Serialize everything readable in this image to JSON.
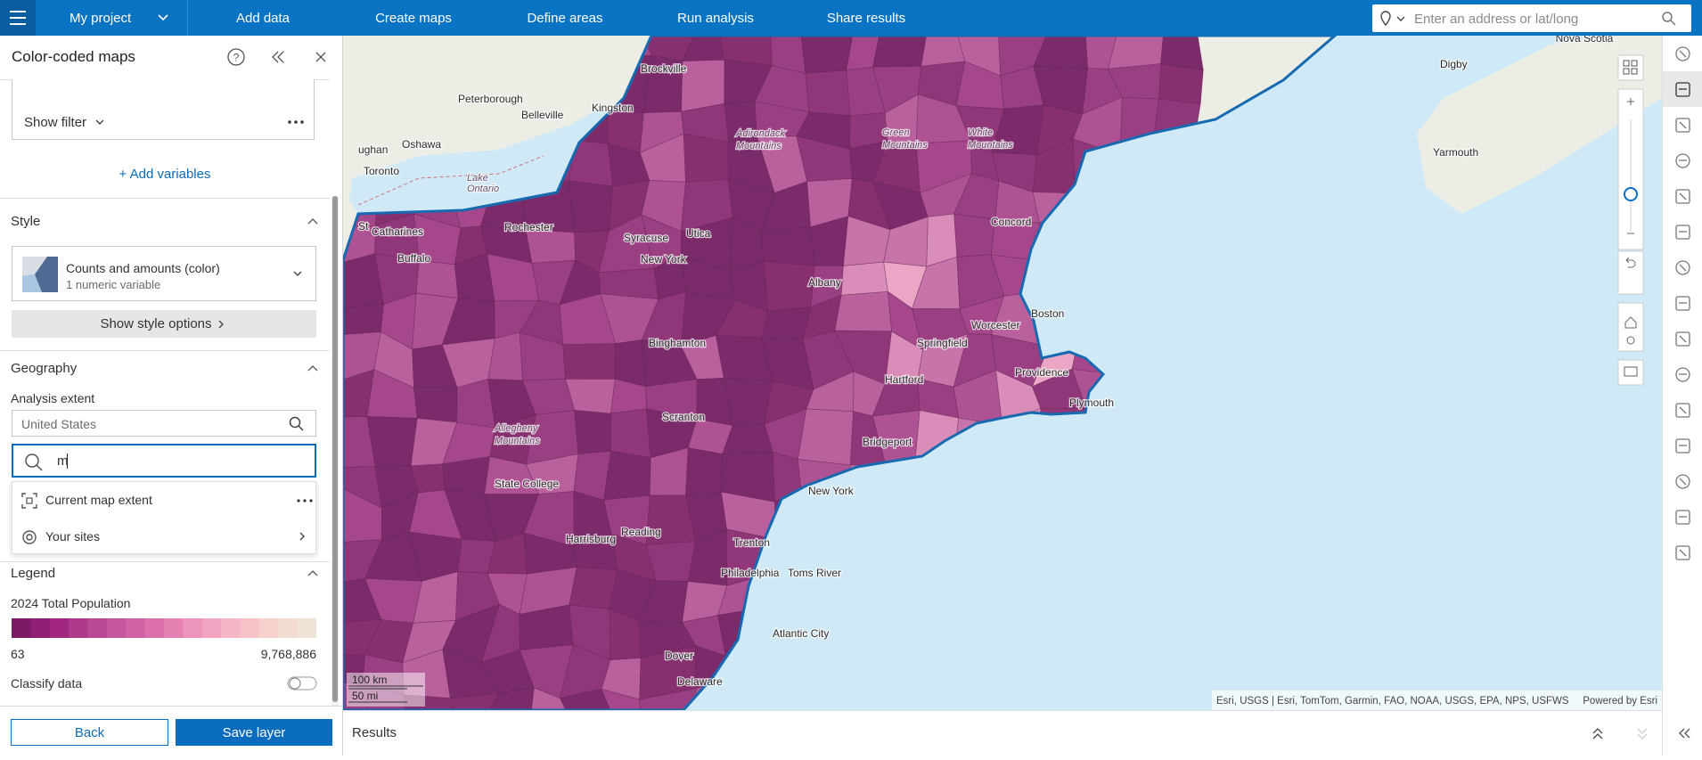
{
  "header": {
    "project": "My project",
    "nav": [
      "Add data",
      "Create maps",
      "Define areas",
      "Run analysis",
      "Share results"
    ],
    "search_placeholder": "Enter an address or lat/long"
  },
  "panel": {
    "title": "Color-coded maps",
    "show_filter": "Show filter",
    "add_variables": "+ Add variables",
    "style": {
      "heading": "Style",
      "option_title": "Counts and amounts (color)",
      "option_sub": "1 numeric variable",
      "button": "Show style options"
    },
    "geography": {
      "heading": "Geography",
      "label": "Analysis extent",
      "value": "United States",
      "search_text": "m",
      "items": [
        "Current map extent",
        "Your sites"
      ]
    },
    "legend": {
      "heading": "Legend",
      "field": "2024 Total Population",
      "min": "63",
      "max": "9,768,886",
      "classify": "Classify data"
    },
    "buttons": {
      "back": "Back",
      "save": "Save layer"
    }
  },
  "map": {
    "labels": [
      "Nova Scotia",
      "Digby",
      "Yarmouth",
      "Brockville",
      "Peterborough",
      "Belleville",
      "Kingston",
      "ughan",
      "Oshawa",
      "Toronto",
      "Lake",
      "Ontario",
      "St",
      "Catharines",
      "Rochester",
      "Buffalo",
      "Syracuse",
      "Utica",
      "New York",
      "Adirondack",
      "Mountains",
      "Green",
      "Mountains",
      "White",
      "Mountains",
      "Concord",
      "Albany",
      "Boston",
      "Worcester",
      "Springfield",
      "Binghamton",
      "Providence",
      "Hartford",
      "Plymouth",
      "Scranton",
      "Bridgeport",
      "Allegheny",
      "Mountains",
      "State College",
      "New York",
      "Harrisburg",
      "Reading",
      "Trenton",
      "Philadelphia",
      "Toms River",
      "Atlantic City",
      "Dover",
      "Delaware"
    ],
    "scale": [
      "100 km",
      "50 mi"
    ],
    "attribution": "Esri, USGS | Esri, TomTom, Garmin, FAO, NOAA, USGS, EPA, NPS, USFWS",
    "powered": "Powered by Esri"
  },
  "results": "Results"
}
